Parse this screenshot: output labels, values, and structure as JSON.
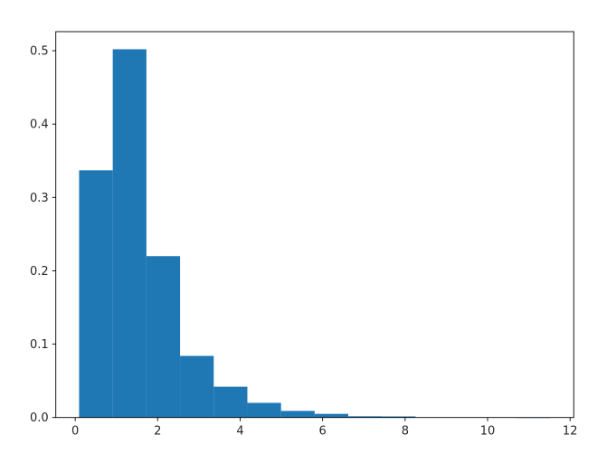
{
  "chart_data": {
    "type": "bar",
    "subtype": "histogram",
    "title": "",
    "xlabel": "",
    "ylabel": "",
    "bin_edges": [
      0.095,
      0.911,
      1.727,
      2.543,
      3.359,
      4.175,
      4.991,
      5.807,
      6.623,
      7.439,
      8.255,
      9.071,
      9.887,
      10.703,
      11.519
    ],
    "values": [
      0.337,
      0.502,
      0.22,
      0.084,
      0.042,
      0.02,
      0.009,
      0.005,
      0.0017,
      0.0015,
      0,
      0,
      0,
      0.0001
    ],
    "xlim": [
      -0.47,
      12.09
    ],
    "ylim": [
      0,
      0.526
    ],
    "xticks": [
      "0",
      "2",
      "4",
      "6",
      "8",
      "10",
      "12"
    ],
    "yticks": [
      "0.0",
      "0.1",
      "0.2",
      "0.3",
      "0.4",
      "0.5"
    ],
    "grid": false,
    "legend": "none",
    "color": "#1f77b4"
  }
}
